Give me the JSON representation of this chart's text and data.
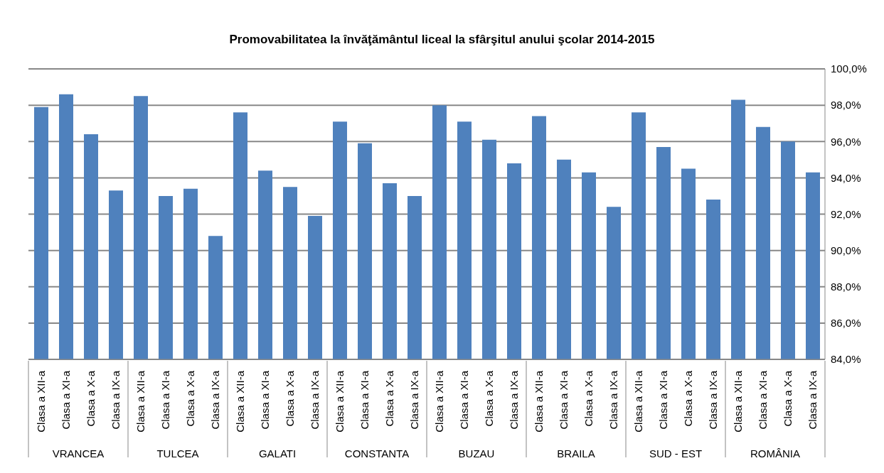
{
  "chart_data": {
    "type": "bar",
    "title": "Promovabilitatea la învăţământul liceal la sfârşitul anului şcolar  2014-2015",
    "categories": [
      "Clasa a XII-a",
      "Clasa a XI-a",
      "Clasa a X-a",
      "Clasa a IX-a",
      "Clasa a XII-a",
      "Clasa a XI-a",
      "Clasa a X-a",
      "Clasa a IX-a",
      "Clasa a XII-a",
      "Clasa a XI-a",
      "Clasa a X-a",
      "Clasa a IX-a",
      "Clasa a XII-a",
      "Clasa a XI-a",
      "Clasa a X-a",
      "Clasa a IX-a",
      "Clasa a XII-a",
      "Clasa a XI-a",
      "Clasa a X-a",
      "Clasa a IX-a",
      "Clasa a XII-a",
      "Clasa a XI-a",
      "Clasa a X-a",
      "Clasa a IX-a",
      "Clasa a XII-a",
      "Clasa a XI-a",
      "Clasa a X-a",
      "Clasa a IX-a",
      "Clasa a XII-a",
      "Clasa a XI-a",
      "Clasa a X-a",
      "Clasa a IX-a"
    ],
    "annotations": [
      "VRANCEA",
      "TULCEA",
      "GALATI",
      "CONSTANTA",
      "BUZAU",
      "BRAILA",
      "SUD - EST",
      "ROMÂNIA"
    ],
    "values": [
      97.9,
      98.6,
      96.4,
      93.3,
      98.5,
      93.0,
      93.4,
      90.8,
      97.6,
      94.4,
      93.5,
      91.9,
      97.1,
      95.9,
      93.7,
      93.0,
      98.0,
      97.1,
      96.1,
      94.8,
      97.4,
      95.0,
      94.3,
      92.4,
      97.6,
      95.7,
      94.5,
      92.8,
      98.3,
      96.8,
      96.0,
      94.3
    ],
    "color": "#4f81bd",
    "ylim": [
      84,
      100
    ],
    "yticks": [
      {
        "value": 84,
        "label": "84,0%"
      },
      {
        "value": 86,
        "label": "86,0%"
      },
      {
        "value": 88,
        "label": "88,0%"
      },
      {
        "value": 90,
        "label": "90,0%"
      },
      {
        "value": 92,
        "label": "92,0%"
      },
      {
        "value": 94,
        "label": "94,0%"
      },
      {
        "value": 96,
        "label": "96,0%"
      },
      {
        "value": 98,
        "label": "98,0%"
      },
      {
        "value": 100,
        "label": "100,0%"
      }
    ],
    "grid": "y"
  }
}
